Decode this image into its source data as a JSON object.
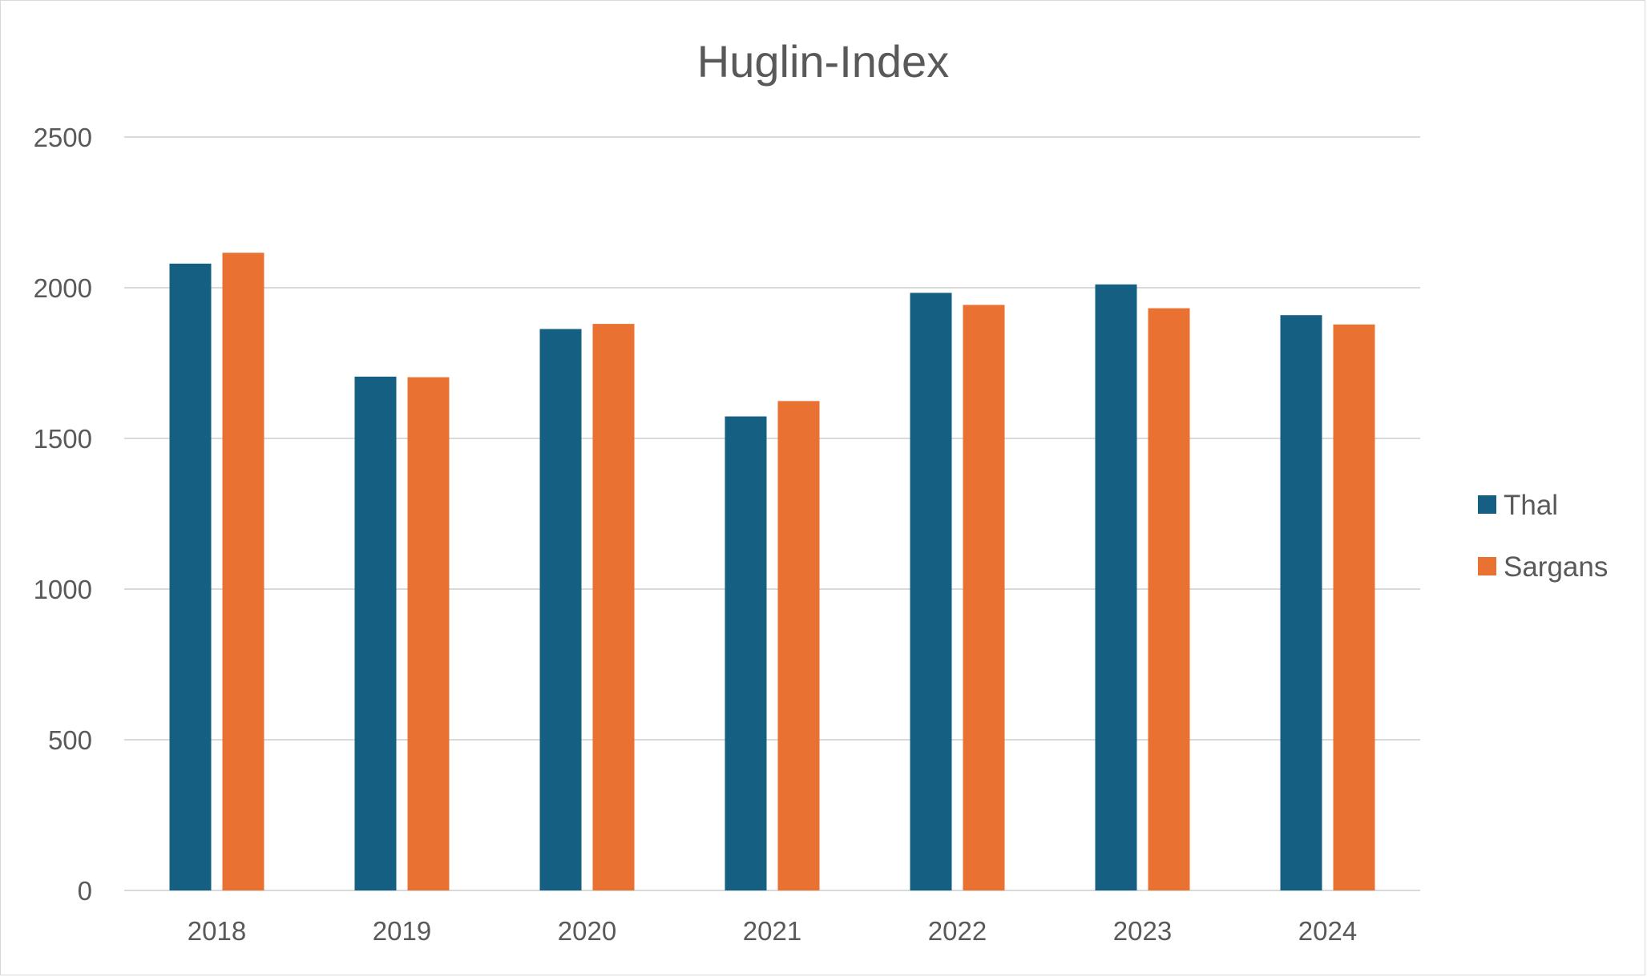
{
  "chart_data": {
    "type": "bar",
    "title": "Huglin-Index",
    "xlabel": "",
    "ylabel": "",
    "categories": [
      "2018",
      "2019",
      "2020",
      "2021",
      "2022",
      "2023",
      "2024"
    ],
    "series": [
      {
        "name": "Thal",
        "color": "#156082",
        "values": [
          2080,
          1705,
          1863,
          1573,
          1983,
          2011,
          1909
        ]
      },
      {
        "name": "Sargans",
        "color": "#E97132",
        "values": [
          2116,
          1703,
          1880,
          1624,
          1943,
          1932,
          1878
        ]
      }
    ],
    "ylim": [
      0,
      2500
    ],
    "yticks": [
      "0",
      "500",
      "1000",
      "1500",
      "2000",
      "2500"
    ],
    "grid": true,
    "legend_position": "right"
  }
}
